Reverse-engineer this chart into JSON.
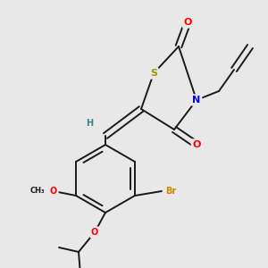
{
  "background_color": "#e8e8e8",
  "atom_colors": {
    "S": "#9b9b00",
    "N": "#0000ee",
    "O": "#ff0000",
    "Br": "#cc8800",
    "C": "#000000",
    "H": "#408080"
  },
  "bond_color": "#1a1a1a",
  "figsize": [
    3.0,
    3.0
  ],
  "dpi": 100
}
